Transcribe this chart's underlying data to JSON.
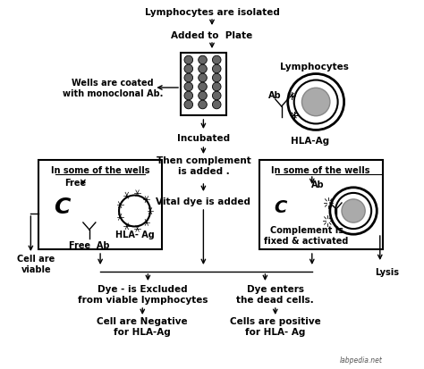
{
  "bg_color": "#ffffff",
  "watermark": "labpedia.net",
  "nodes": {
    "top": "Lymphocytes are isolated",
    "added": "Added to  Plate",
    "incubated": "Incubated",
    "complement": "Then complement\nis added .",
    "vital_dye": "Vital dye is added",
    "left_box_title": "In some of the wells",
    "right_box_title": "In some of the wells",
    "wells_label": "Wells are coated\nwith monoclonal Ab.",
    "lymphocytes_label": "Lymphocytes",
    "hla_ag_label": "HLA-Ag",
    "complement_fixed": "Complement is\nfixed & activated",
    "lysis": "Lysis",
    "cell_viable": "Cell are\nviable",
    "dye_excluded": "Dye - is Excluded\nfrom viable lymphocytes",
    "dye_enters": "Dye enters\nthe dead cells.",
    "negative": "Cell are Negative\nfor HLA-Ag",
    "positive": "Cells are positive\nfor HLA- Ag",
    "free_label": "Free",
    "free_ab": "Free  Ab",
    "hla_ag_left": "HLA- Ag",
    "ab_label": "Ab",
    "ab_label2": "Ab"
  }
}
